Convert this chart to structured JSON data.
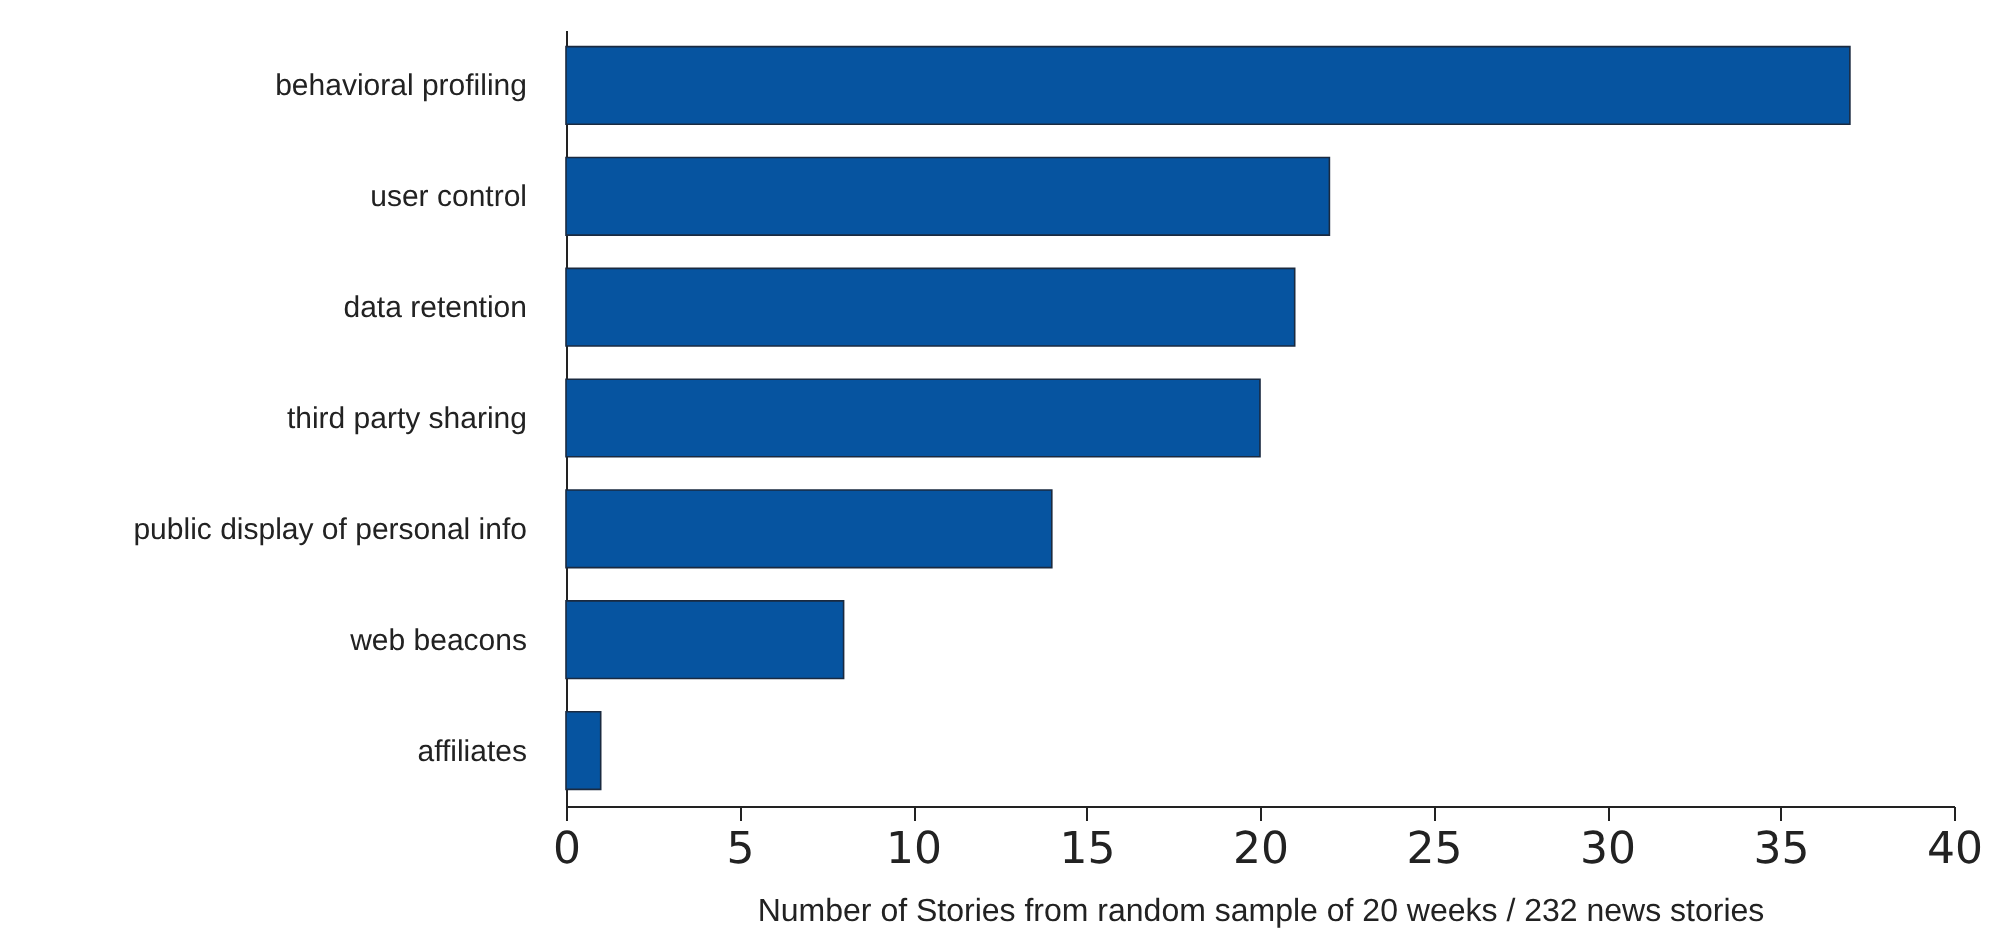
{
  "chart_data": {
    "type": "bar",
    "orientation": "horizontal",
    "xlabel": "Number of Stories from random sample of 20 weeks / 232 news stories",
    "categories": [
      "behavioral profiling",
      "user control",
      "data retention",
      "third party sharing",
      "public display of personal info",
      "web beacons",
      "affiliates"
    ],
    "values": [
      37,
      22,
      21,
      20,
      14,
      8,
      1
    ],
    "color": "#0654a0",
    "xlim": [
      0,
      40
    ],
    "xticks": [
      0,
      5,
      10,
      15,
      20,
      25,
      30,
      35,
      40
    ],
    "grid": false
  }
}
